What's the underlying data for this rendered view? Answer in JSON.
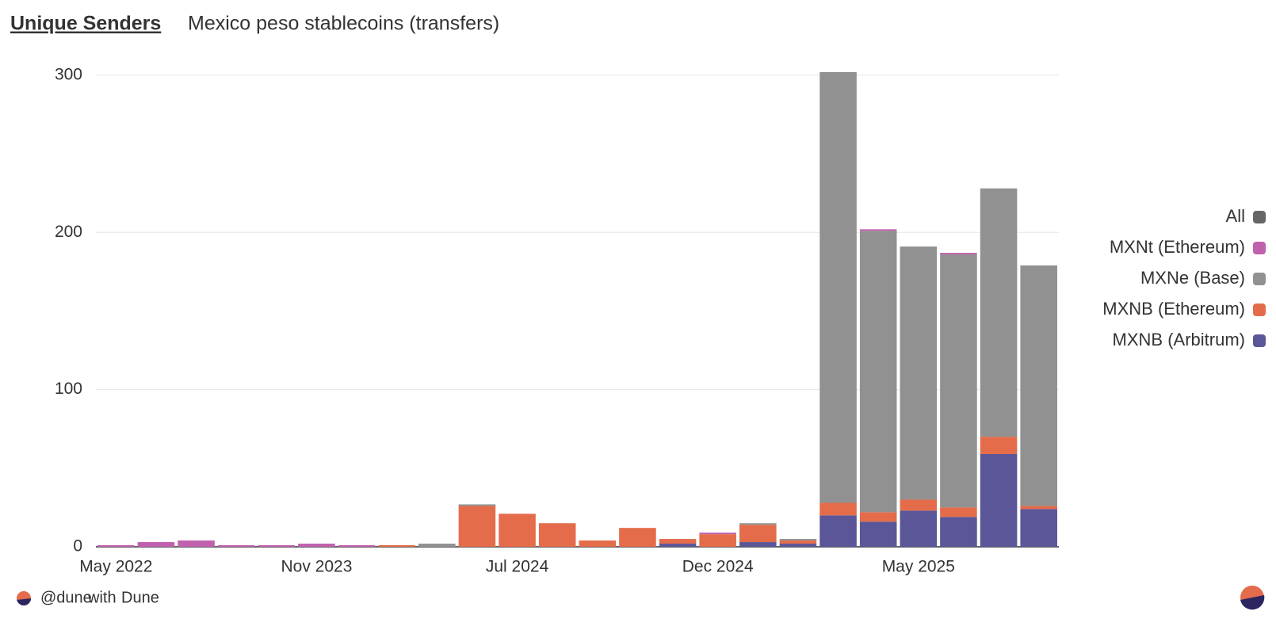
{
  "header": {
    "title": "Unique Senders",
    "subtitle": "Mexico peso stablecoins (transfers)"
  },
  "footer": {
    "user": "@dune",
    "with": "with",
    "brand": "Dune"
  },
  "chart_data": {
    "type": "stacked_bar",
    "categories": [
      "May 2022",
      null,
      null,
      null,
      null,
      "Nov 2023",
      null,
      null,
      null,
      null,
      "Jul 2024",
      null,
      null,
      null,
      null,
      "Dec 2024",
      null,
      null,
      null,
      null,
      "May 2025",
      null,
      null,
      null
    ],
    "series": [
      {
        "name": "All",
        "color": "#666666",
        "values": [
          null,
          null,
          null,
          null,
          null,
          null,
          null,
          null,
          null,
          null,
          null,
          null,
          null,
          null,
          null,
          null,
          null,
          null,
          null,
          null,
          null,
          null,
          null,
          null
        ]
      },
      {
        "name": "MXNt (Ethereum)",
        "color": "#c061ad",
        "values": [
          1,
          3,
          4,
          1,
          1,
          2,
          1,
          null,
          null,
          null,
          null,
          null,
          null,
          null,
          null,
          1,
          null,
          null,
          null,
          1,
          null,
          1,
          null,
          null
        ]
      },
      {
        "name": "MXNe (Base)",
        "color": "#919191",
        "values": [
          null,
          null,
          null,
          null,
          null,
          null,
          null,
          null,
          2,
          1,
          null,
          null,
          null,
          null,
          null,
          null,
          1,
          1,
          274,
          179,
          161,
          161,
          158,
          153
        ]
      },
      {
        "name": "MXNB (Ethereum)",
        "color": "#e46c4a",
        "values": [
          null,
          null,
          null,
          null,
          null,
          null,
          null,
          1,
          null,
          26,
          21,
          15,
          4,
          12,
          3,
          8,
          11,
          2,
          8,
          6,
          7,
          6,
          11,
          2
        ]
      },
      {
        "name": "MXNB (Arbitrum)",
        "color": "#5a5697",
        "values": [
          null,
          null,
          null,
          null,
          null,
          null,
          null,
          null,
          null,
          null,
          null,
          null,
          null,
          null,
          2,
          null,
          3,
          2,
          20,
          16,
          23,
          19,
          59,
          24
        ]
      }
    ],
    "ylim": [
      0,
      305
    ],
    "yticks": [
      0,
      100,
      200,
      300
    ],
    "grid": true,
    "legend": "right"
  }
}
